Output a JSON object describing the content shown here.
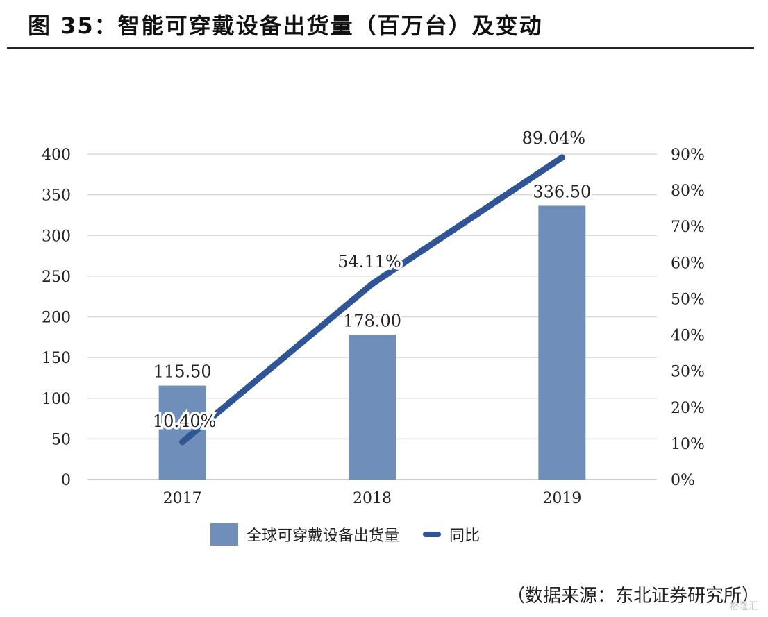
{
  "page": {
    "title": "图 35：智能可穿戴设备出货量（百万台）及变动",
    "source": "（数据来源：东北证券研究所）",
    "watermark": "格隆汇"
  },
  "chart_data": {
    "type": "bar",
    "categories": [
      "2017",
      "2018",
      "2019"
    ],
    "series": [
      {
        "name": "全球可穿戴设备出货量",
        "type": "bar",
        "axis": "left",
        "values": [
          115.5,
          178.0,
          336.5
        ],
        "labels": [
          "115.50",
          "178.00",
          "336.50"
        ],
        "color": "#6f8fba"
      },
      {
        "name": "同比",
        "type": "line",
        "axis": "right",
        "values": [
          10.4,
          54.11,
          89.04
        ],
        "labels": [
          "10.40%",
          "54.11%",
          "89.04%"
        ],
        "color": "#2f5597"
      }
    ],
    "y_left": {
      "min": 0,
      "max": 400,
      "ticks": [
        "0",
        "50",
        "100",
        "150",
        "200",
        "250",
        "300",
        "350",
        "400"
      ]
    },
    "y_right": {
      "min": 0,
      "max": 90,
      "ticks": [
        "0%",
        "10%",
        "20%",
        "30%",
        "40%",
        "50%",
        "60%",
        "70%",
        "80%",
        "90%"
      ]
    },
    "grid": true,
    "legend_position": "bottom"
  }
}
